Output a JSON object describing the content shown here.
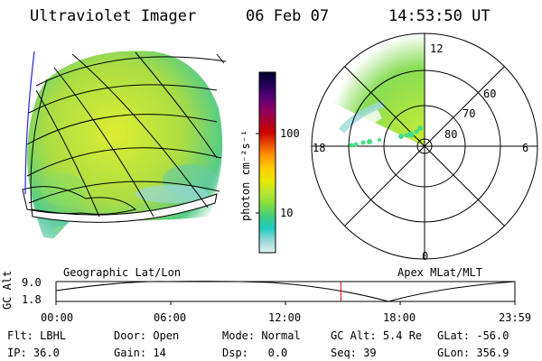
{
  "header": {
    "title": "Ultraviolet Imager",
    "date": "06 Feb 07",
    "time": "14:53:50 UT"
  },
  "colorbar": {
    "unit_label": "photon cm⁻²s⁻¹",
    "ticks": [
      "100",
      "10"
    ],
    "colors": [
      "#000033",
      "#220055",
      "#550077",
      "#880066",
      "#aa0033",
      "#cc0000",
      "#e85000",
      "#ff9900",
      "#ffcc00",
      "#e8e800",
      "#b8e830",
      "#80dd40",
      "#40cc80",
      "#20ccc0",
      "#9ad8d8",
      "#e0f0f0"
    ]
  },
  "polar_plot": {
    "mlt_labels": [
      "12",
      "18",
      "6",
      "0"
    ],
    "lat_labels": [
      "60",
      "70",
      "80"
    ],
    "aurora_color": "#44dd88",
    "oval_colors": [
      "#ccee33",
      "#88dd55",
      "#ffffff"
    ]
  },
  "disk": {
    "colors": [
      "#ddee33",
      "#aadd44",
      "#55cc88",
      "#ffffff"
    ]
  },
  "panel_labels": {
    "left": "Geographic Lat/Lon",
    "right": "Apex MLat/MLT"
  },
  "altitude_plot": {
    "axis_title": "GC Alt",
    "y_ticks": [
      "9.0",
      "1.8"
    ],
    "x_ticks": [
      "00:00",
      "06:00",
      "12:00",
      "18:00",
      "23:59"
    ],
    "marker_color": "#dd0000",
    "marker_hour": 14.9
  },
  "status": {
    "row1": [
      {
        "label": "Flt:",
        "value": "LBHL"
      },
      {
        "label": "Door:",
        "value": "Open"
      },
      {
        "label": "Mode:",
        "value": "Normal"
      },
      {
        "label": "GC Alt:",
        "value": "5.4 Re"
      },
      {
        "label": "GLat:",
        "value": "-56.0"
      }
    ],
    "row2": [
      {
        "label": "IP:",
        "value": "36.0"
      },
      {
        "label": "Gain:",
        "value": "14"
      },
      {
        "label": "Dsp:",
        "value": "0.0"
      },
      {
        "label": "Seq:",
        "value": "39"
      },
      {
        "label": "GLon:",
        "value": "356.9"
      }
    ]
  }
}
